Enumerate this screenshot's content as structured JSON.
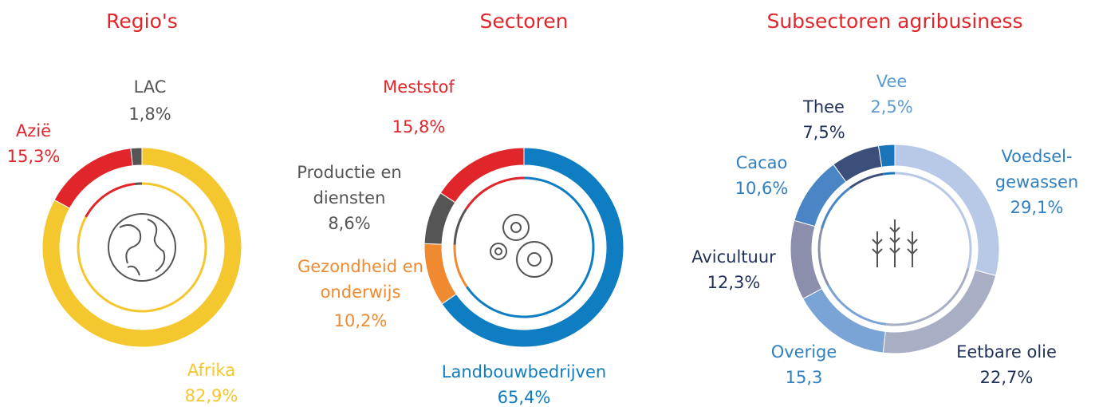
{
  "chart_data": [
    {
      "type": "pie",
      "title": "Regio's",
      "categories": [
        "Afrika",
        "Azië",
        "LAC"
      ],
      "values": [
        82.9,
        15.3,
        1.8
      ],
      "value_labels": [
        "82,9%",
        "15,3%",
        "1,8%"
      ],
      "colors": [
        "#f5c72e",
        "#e0262b",
        "#555555"
      ],
      "label_colors": [
        "#f5c72e",
        "#e0262b",
        "#555555"
      ]
    },
    {
      "type": "pie",
      "title": "Sectoren",
      "categories": [
        "Landbouwbedrijven",
        "Gezondheid en onderwijs",
        "Productie en diensten",
        "Meststof"
      ],
      "values": [
        65.4,
        10.2,
        8.6,
        15.8
      ],
      "value_labels": [
        "65,4%",
        "10,2%",
        "8,6%",
        "15,8%"
      ],
      "colors": [
        "#0f7dc2",
        "#f08a31",
        "#555555",
        "#e0262b"
      ],
      "label_colors": [
        "#0f7dc2",
        "#f08a31",
        "#555555",
        "#e0262b"
      ]
    },
    {
      "type": "pie",
      "title": "Subsectoren agribusiness",
      "categories": [
        "Voedsel-gewassen",
        "Eetbare olie",
        "Overige",
        "Avicultuur",
        "Cacao",
        "Thee",
        "Vee"
      ],
      "values": [
        29.1,
        22.7,
        15.3,
        12.3,
        10.6,
        7.5,
        2.5
      ],
      "value_labels": [
        "29,1%",
        "22,7%",
        "15,3",
        "12,3%",
        "10,6%",
        "7,5%",
        "2,5%"
      ],
      "colors": [
        "#b7c9e6",
        "#a8aec4",
        "#7aa3d6",
        "#8c8fab",
        "#4a86c5",
        "#3b4f7a",
        "#1b75bb"
      ],
      "label_colors": [
        "#2f7fc1",
        "#1f3158",
        "#2f7fc1",
        "#1f3158",
        "#2f7fc1",
        "#1f3158",
        "#5b9bd5"
      ]
    }
  ]
}
